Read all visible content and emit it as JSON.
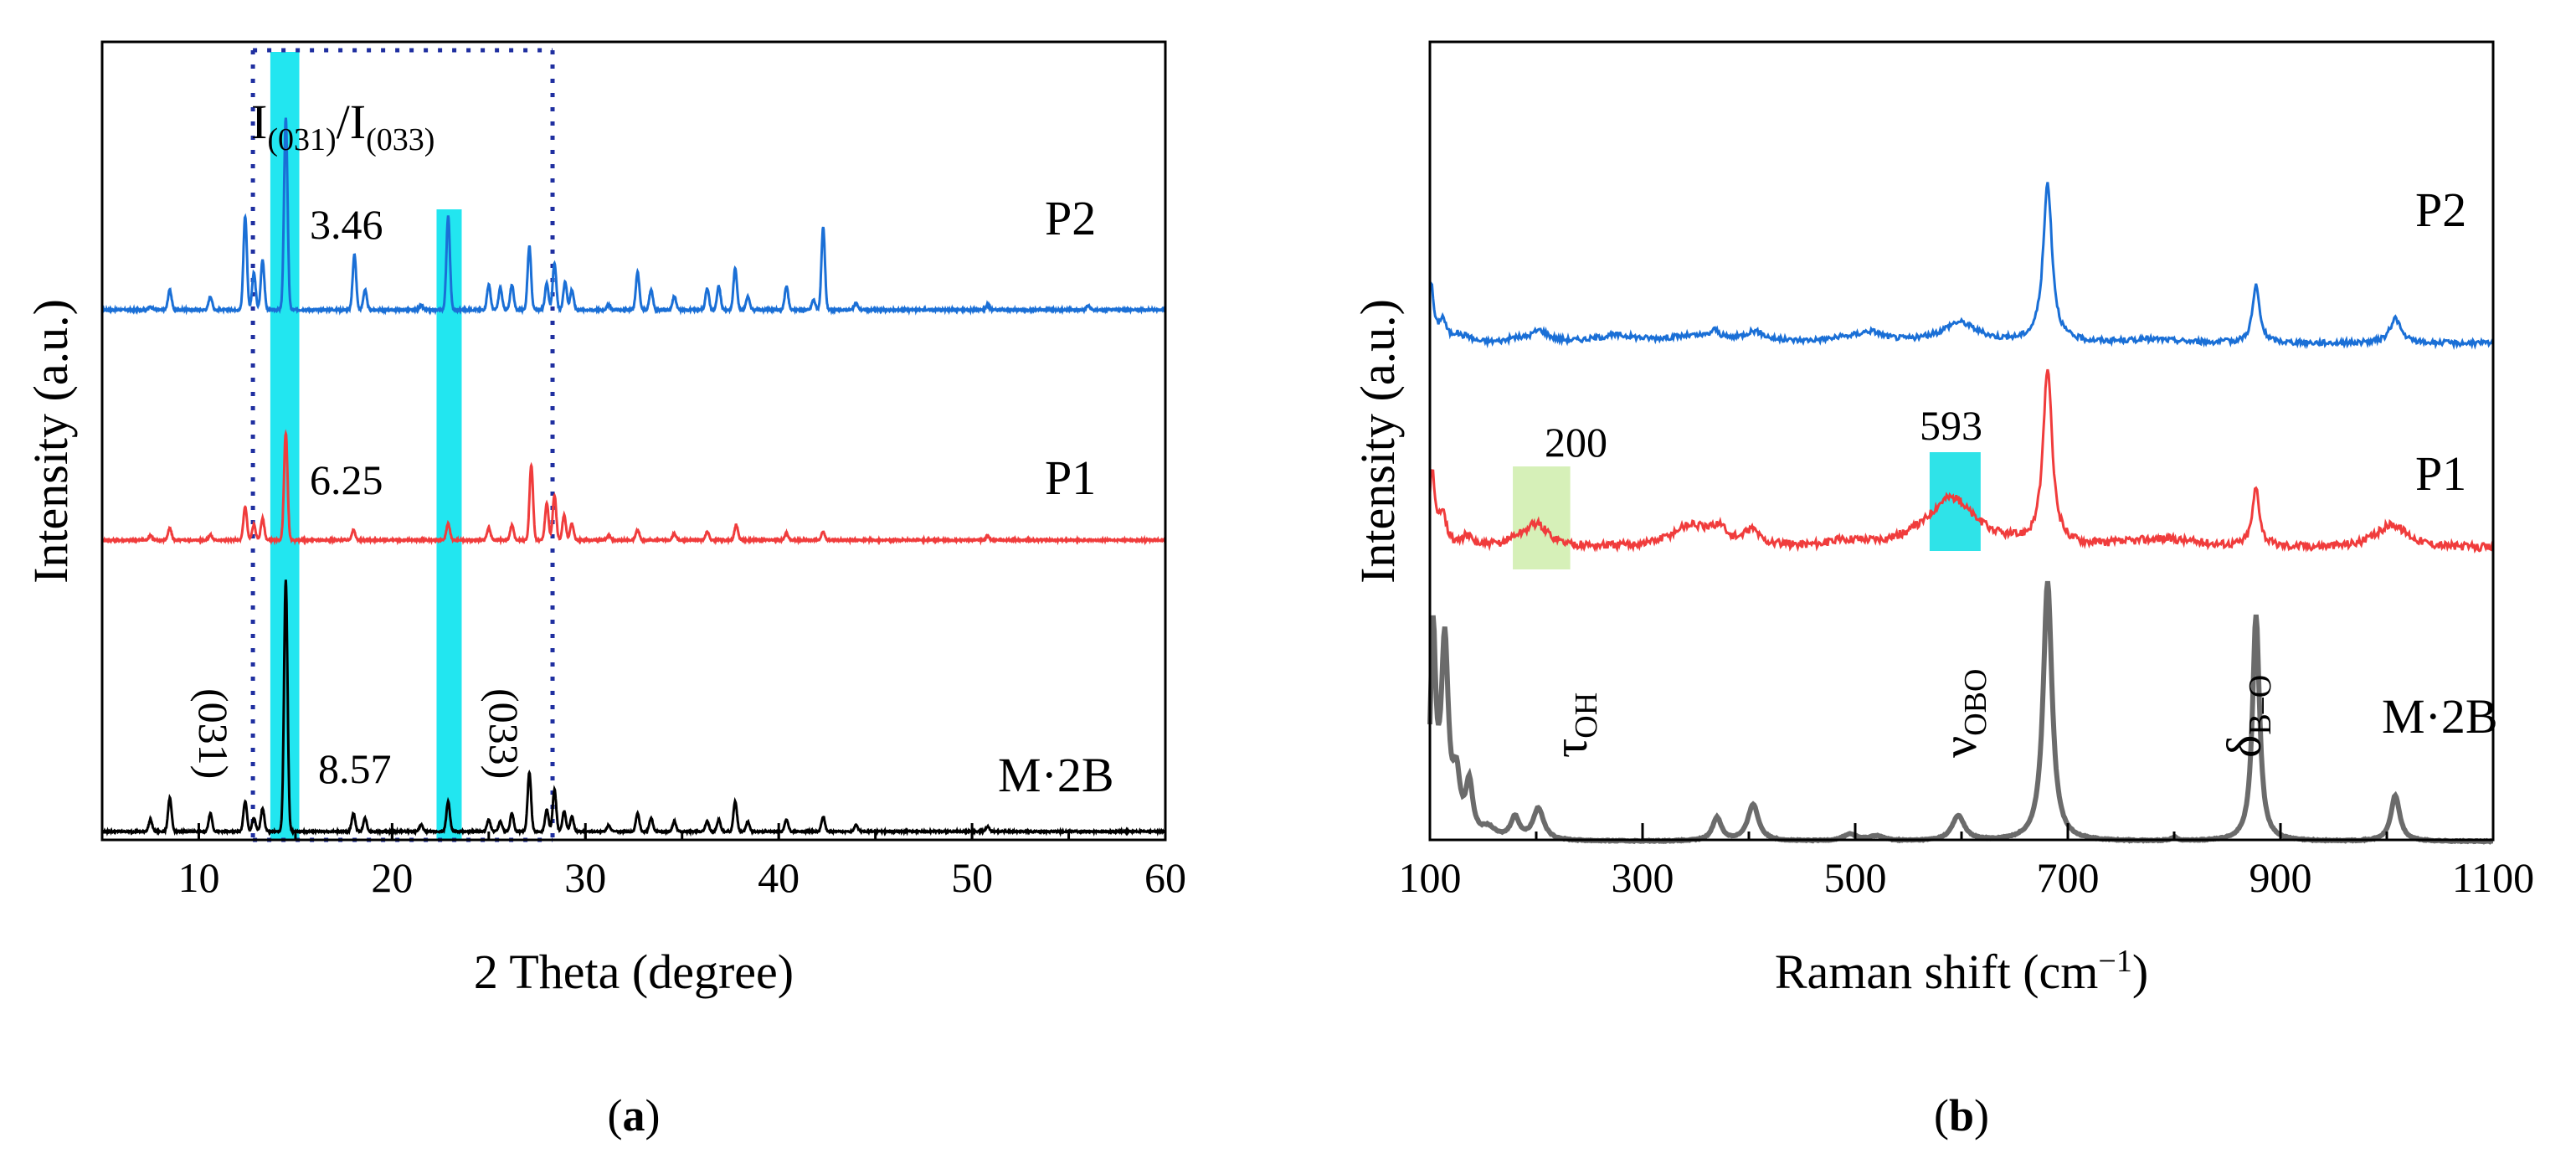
{
  "chart_data": [
    {
      "type": "line",
      "panel_label": "a",
      "xlabel": "2 Theta (degree)",
      "ylabel": "Intensity (a.u.)",
      "xlim": [
        5,
        60
      ],
      "xticks": [
        "10",
        "20",
        "30",
        "40",
        "50",
        "60"
      ],
      "xtick_values": [
        10,
        20,
        30,
        40,
        50,
        60
      ],
      "ratio_label": {
        "base": "I",
        "sub1": "(031)",
        "slash": "/I",
        "sub2": "(033)"
      },
      "peak_labels": [
        "(031)",
        "(033)"
      ],
      "highlight_bands": [
        [
          13.7,
          15.2
        ],
        [
          22.3,
          23.6
        ]
      ],
      "dotted_lines": [
        12.8,
        28.3
      ],
      "series": [
        {
          "name": "P2",
          "color": "#1a6fd6",
          "ratio": "3.46",
          "baseline": 0,
          "noise": 2.2,
          "peaks": [
            [
              7.5,
              4
            ],
            [
              8.5,
              24
            ],
            [
              10.6,
              16
            ],
            [
              12.4,
              112
            ],
            [
              12.85,
              44
            ],
            [
              13.3,
              60
            ],
            [
              14.5,
              230
            ],
            [
              18.05,
              66
            ],
            [
              18.6,
              24
            ],
            [
              21.5,
              5
            ],
            [
              22.9,
              112
            ],
            [
              25.0,
              30
            ],
            [
              25.6,
              26
            ],
            [
              26.2,
              30
            ],
            [
              27.1,
              76
            ],
            [
              28.0,
              32
            ],
            [
              28.4,
              56
            ],
            [
              28.95,
              34
            ],
            [
              29.3,
              24
            ],
            [
              31.2,
              6
            ],
            [
              32.7,
              45
            ],
            [
              33.4,
              24
            ],
            [
              34.6,
              16
            ],
            [
              36.3,
              26
            ],
            [
              36.9,
              28
            ],
            [
              37.75,
              50
            ],
            [
              38.4,
              16
            ],
            [
              40.4,
              28
            ],
            [
              41.8,
              12
            ],
            [
              42.3,
              98
            ],
            [
              44.0,
              8
            ],
            [
              50.8,
              6
            ],
            [
              56.0,
              5
            ]
          ]
        },
        {
          "name": "P1",
          "color": "#f03c3c",
          "ratio": "6.25",
          "baseline": 0,
          "noise": 2.0,
          "peaks": [
            [
              7.5,
              6
            ],
            [
              8.5,
              14
            ],
            [
              10.6,
              6
            ],
            [
              12.4,
              40
            ],
            [
              12.85,
              18
            ],
            [
              13.3,
              26
            ],
            [
              14.5,
              128
            ],
            [
              18.0,
              12
            ],
            [
              22.9,
              20
            ],
            [
              25.0,
              14
            ],
            [
              26.2,
              18
            ],
            [
              27.2,
              90
            ],
            [
              28.0,
              44
            ],
            [
              28.4,
              54
            ],
            [
              28.9,
              30
            ],
            [
              29.3,
              20
            ],
            [
              31.2,
              6
            ],
            [
              32.7,
              12
            ],
            [
              34.6,
              8
            ],
            [
              36.3,
              10
            ],
            [
              37.8,
              18
            ],
            [
              40.4,
              8
            ],
            [
              42.3,
              10
            ],
            [
              50.8,
              5
            ]
          ]
        },
        {
          "name": "M·2B",
          "color": "#000000",
          "ratio": "8.57",
          "baseline": 0,
          "noise": 1.8,
          "peaks": [
            [
              7.5,
              14
            ],
            [
              8.5,
              40
            ],
            [
              10.6,
              22
            ],
            [
              12.4,
              36
            ],
            [
              12.85,
              16
            ],
            [
              13.3,
              28
            ],
            [
              14.5,
              300
            ],
            [
              18.0,
              22
            ],
            [
              18.6,
              16
            ],
            [
              21.5,
              8
            ],
            [
              22.9,
              36
            ],
            [
              25.0,
              14
            ],
            [
              25.6,
              12
            ],
            [
              26.2,
              22
            ],
            [
              27.1,
              70
            ],
            [
              28.0,
              26
            ],
            [
              28.4,
              50
            ],
            [
              28.9,
              24
            ],
            [
              29.3,
              18
            ],
            [
              31.2,
              8
            ],
            [
              32.7,
              22
            ],
            [
              33.4,
              16
            ],
            [
              34.6,
              12
            ],
            [
              36.3,
              12
            ],
            [
              36.9,
              14
            ],
            [
              37.75,
              36
            ],
            [
              38.4,
              12
            ],
            [
              40.4,
              14
            ],
            [
              42.3,
              18
            ],
            [
              44.0,
              8
            ],
            [
              50.8,
              6
            ]
          ]
        }
      ]
    },
    {
      "type": "line",
      "panel_label": "b",
      "xlabel": "Raman shift (cm",
      "xlabel_sup": "−1",
      "xlabel_end": ")",
      "ylabel": "Intensity (a.u.)",
      "xlim": [
        100,
        1100
      ],
      "xticks": [
        "100",
        "300",
        "500",
        "700",
        "900",
        "1100"
      ],
      "xtick_values": [
        100,
        300,
        500,
        700,
        900,
        1100
      ],
      "peak_callouts": [
        {
          "label": "200",
          "x": 200,
          "range": [
            178,
            232
          ],
          "color": "#d6f0b8"
        },
        {
          "label": "593",
          "x": 593,
          "range": [
            570,
            618
          ],
          "color": "#2fe3e8"
        }
      ],
      "mode_labels": [
        {
          "base": "τ",
          "sub": "OH",
          "x": 210
        },
        {
          "base": "ν",
          "sub": "OBO",
          "x": 592
        },
        {
          "base": "δ",
          "sub": "B–O",
          "x": 858
        }
      ],
      "series": [
        {
          "name": "P2",
          "color": "#1a6fd6",
          "noise": 1.6,
          "peaks": [
            [
              101,
              70,
              3
            ],
            [
              112,
              26,
              4
            ],
            [
              125,
              8,
              5
            ],
            [
              135,
              6,
              5
            ],
            [
              180,
              4,
              8
            ],
            [
              203,
              14,
              10
            ],
            [
              275,
              8,
              25
            ],
            [
              345,
              7,
              30
            ],
            [
              368,
              10,
              5
            ],
            [
              405,
              12,
              12
            ],
            [
              500,
              6,
              30
            ],
            [
              515,
              8,
              12
            ],
            [
              598,
              24,
              20
            ],
            [
              681,
              190,
              5
            ],
            [
              780,
              4,
              30
            ],
            [
              877,
              68,
              4
            ],
            [
              1008,
              30,
              6
            ]
          ]
        },
        {
          "name": "P1",
          "color": "#f03c3c",
          "noise": 2.4,
          "peaks": [
            [
              102,
              90,
              3
            ],
            [
              112,
              42,
              4
            ],
            [
              135,
              12,
              6
            ],
            [
              180,
              6,
              8
            ],
            [
              200,
              28,
              14
            ],
            [
              345,
              26,
              22
            ],
            [
              372,
              18,
              8
            ],
            [
              403,
              18,
              8
            ],
            [
              495,
              6,
              20
            ],
            [
              590,
              60,
              28
            ],
            [
              681,
              210,
              5
            ],
            [
              790,
              10,
              40
            ],
            [
              877,
              70,
              4
            ],
            [
              1005,
              28,
              18
            ]
          ]
        },
        {
          "name": "M·2B",
          "color": "#6b6b6b",
          "noise": 0.3,
          "peaks": [
            [
              103,
              240,
              3
            ],
            [
              114,
              230,
              4
            ],
            [
              125,
              62,
              4
            ],
            [
              137,
              62,
              4
            ],
            [
              155,
              12,
              8
            ],
            [
              180,
              26,
              5
            ],
            [
              202,
              38,
              6
            ],
            [
              370,
              28,
              5
            ],
            [
              404,
              44,
              6
            ],
            [
              495,
              8,
              8
            ],
            [
              520,
              6,
              8
            ],
            [
              597,
              30,
              7
            ],
            [
              681,
              310,
              5
            ],
            [
              800,
              4,
              4
            ],
            [
              877,
              270,
              4
            ],
            [
              1008,
              55,
              5
            ]
          ]
        }
      ]
    }
  ]
}
